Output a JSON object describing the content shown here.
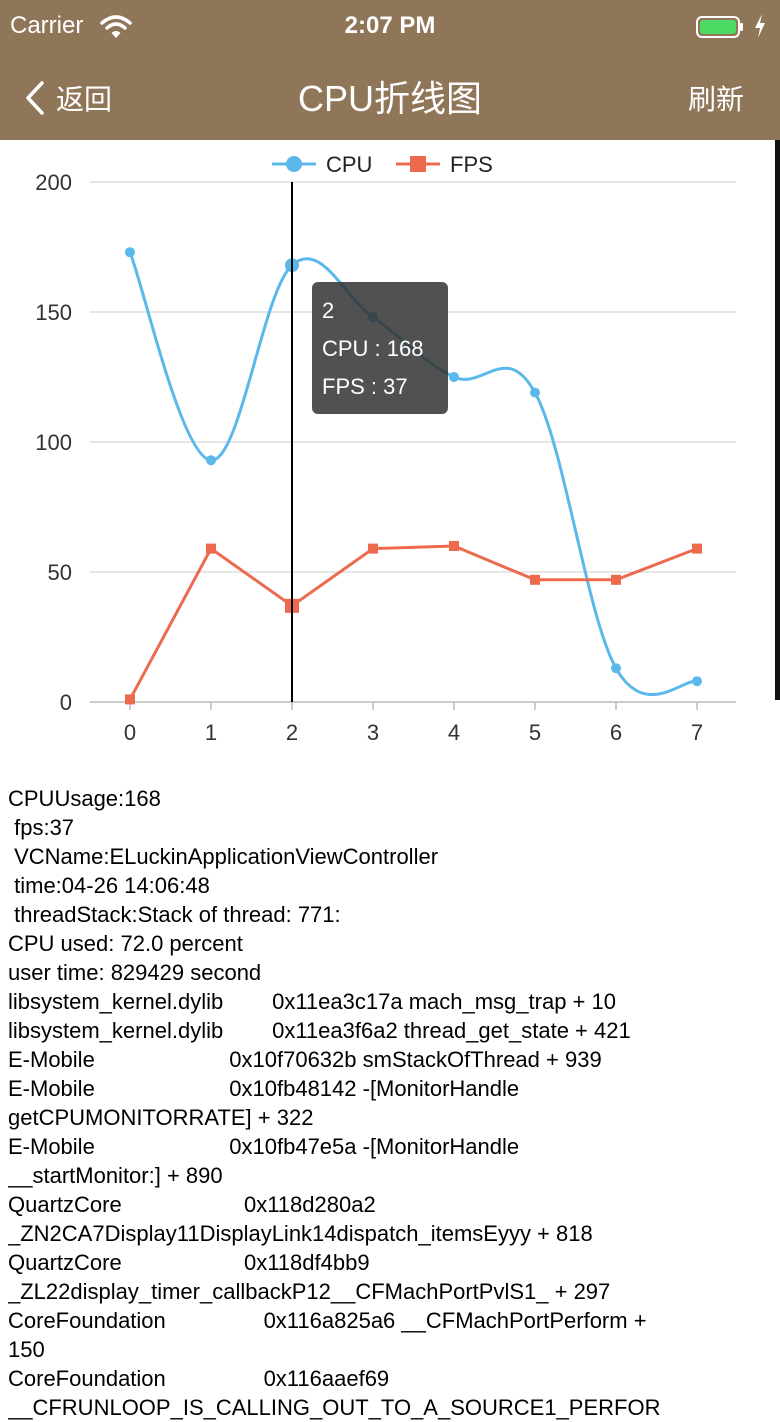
{
  "status_bar": {
    "carrier": "Carrier",
    "time": "2:07 PM"
  },
  "nav": {
    "back_label": "返回",
    "title": "CPU折线图",
    "refresh_label": "刷新",
    "bar_color": "#8f7659"
  },
  "chart_data": {
    "type": "line",
    "x": [
      0,
      1,
      2,
      3,
      4,
      5,
      6,
      7
    ],
    "x_tick_labels": [
      "0",
      "1",
      "2",
      "3",
      "4",
      "5",
      "6",
      "7"
    ],
    "y_tick_labels": [
      "200",
      "150",
      "100",
      "50",
      "0"
    ],
    "ylim": [
      0,
      200
    ],
    "grid": true,
    "legend_position": "top-center",
    "series": [
      {
        "name": "CPU",
        "values": [
          173,
          93,
          168,
          148,
          125,
          119,
          13,
          8
        ],
        "color": "#5ab8ea",
        "marker": "circle",
        "smooth": true
      },
      {
        "name": "FPS",
        "values": [
          1,
          59,
          37,
          59,
          60,
          47,
          47,
          59
        ],
        "color": "#ec6b4e",
        "marker": "square",
        "smooth": false
      }
    ],
    "tooltip": {
      "title": "2",
      "lines": [
        "CPU : 168",
        "FPS : 37"
      ]
    }
  },
  "log_lines": [
    "CPUUsage:168",
    " fps:37",
    " VCName:ELuckinApplicationViewController",
    " time:04-26 14:06:48",
    " threadStack:Stack of thread: 771:",
    "CPU used: 72.0 percent",
    "user time: 829429 second",
    "libsystem_kernel.dylib        0x11ea3c17a mach_msg_trap + 10",
    "libsystem_kernel.dylib        0x11ea3f6a2 thread_get_state + 421",
    "E-Mobile                      0x10f70632b smStackOfThread + 939",
    "E-Mobile                      0x10fb48142 -[MonitorHandle",
    "getCPUMONITORRATE] + 322",
    "E-Mobile                      0x10fb47e5a -[MonitorHandle",
    "__startMonitor:] + 890",
    "QuartzCore                    0x118d280a2",
    "_ZN2CA7Display11DisplayLink14dispatch_itemsEyyy + 818",
    "QuartzCore                    0x118df4bb9",
    "_ZL22display_timer_callbackP12__CFMachPortPvlS1_ + 297",
    "CoreFoundation                0x116a825a6 __CFMachPortPerform +",
    "150",
    "CoreFoundation                0x116aaef69",
    "__CFRUNLOOP_IS_CALLING_OUT_TO_A_SOURCE1_PERFOR"
  ]
}
